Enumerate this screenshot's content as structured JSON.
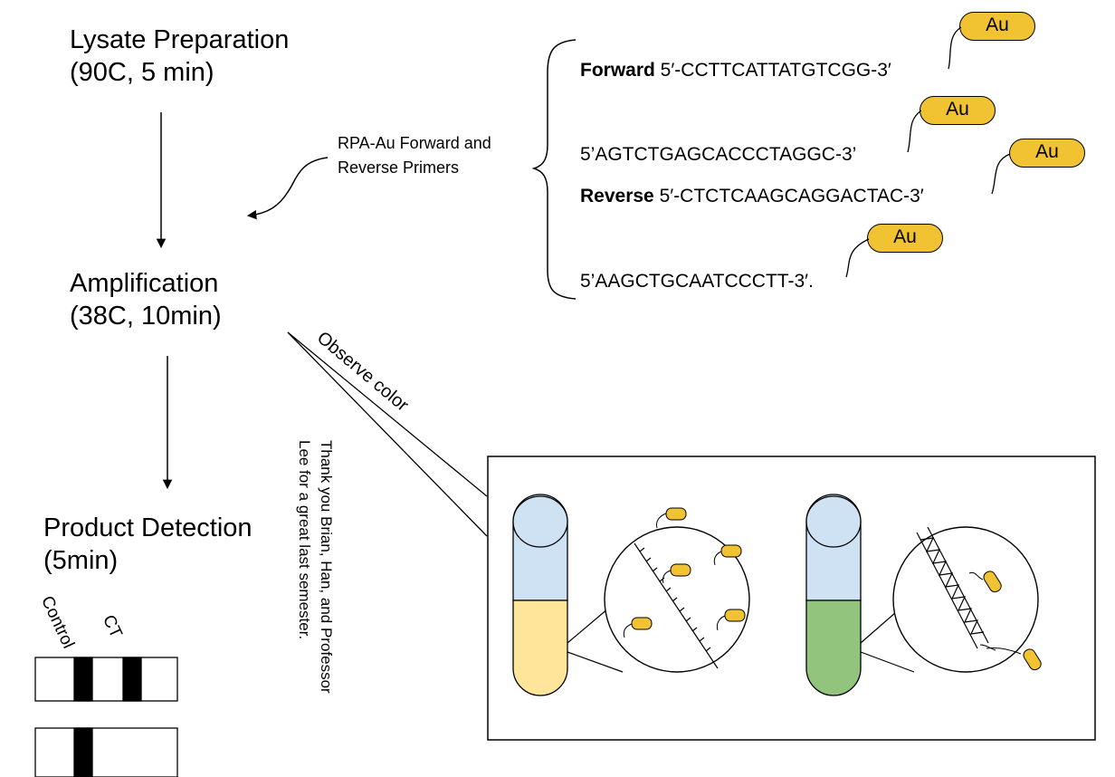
{
  "steps": {
    "lysate": {
      "line1": "Lysate Preparation",
      "line2": "(90C, 5 min)"
    },
    "amplification": {
      "line1": "Amplification",
      "line2": "(38C, 10min)"
    },
    "detection": {
      "line1": "Product Detection",
      "line2": "(5min)"
    }
  },
  "primer_note": {
    "line1": "RPA-Au Forward and",
    "line2": "Reverse Primers"
  },
  "primers": {
    "forward_label": "Forward",
    "forward_seq": " 5′-CCTTCATTATGTCGG-3′",
    "forward_comp": "5’AGTCTGAGCACCCTAGGC-3’",
    "reverse_label": "Reverse",
    "reverse_seq": " 5′-CTCTCAAGCAGGACTAC-3′",
    "reverse_comp": "5’AAGCTGCAATCCCTT-3′."
  },
  "au_label": "Au",
  "observe_label": "Observe color",
  "thanks": {
    "line1": "Thank you Brian, Han, and Professor",
    "line2": "Lee for a great last semester."
  },
  "strip_labels": {
    "control": "Control",
    "ct": "CT"
  },
  "colors": {
    "gold": "#f1c232",
    "tube_top": "#cfe2f3",
    "tube_negative": "#ffe599",
    "tube_positive": "#93c47d"
  }
}
